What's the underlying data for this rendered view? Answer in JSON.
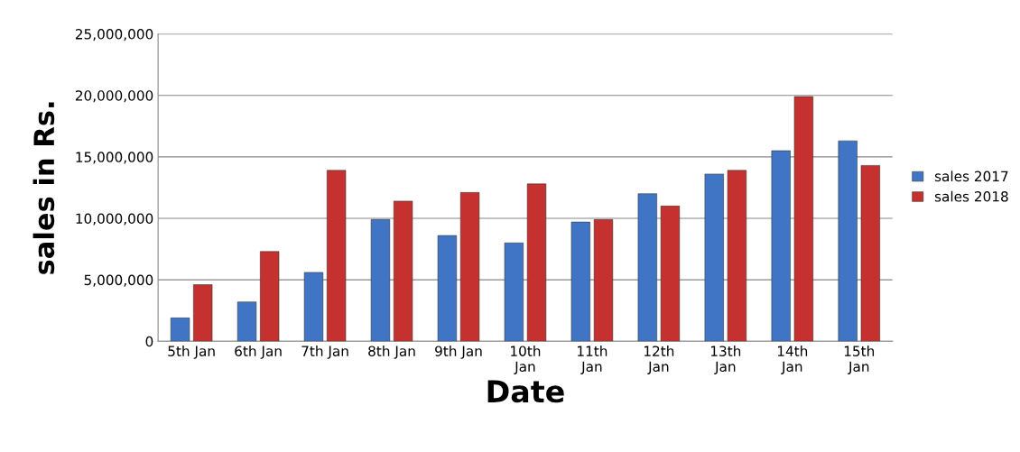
{
  "chart_data": {
    "type": "bar",
    "xlabel": "Date",
    "ylabel": "sales in Rs.",
    "categories": [
      "5th Jan",
      "6th Jan",
      "7th Jan",
      "8th Jan",
      "9th Jan",
      "10th\nJan",
      "11th\nJan",
      "12th\nJan",
      "13th\nJan",
      "14th\nJan",
      "15th\nJan"
    ],
    "series": [
      {
        "name": "sales 2017",
        "color": "#3f75c4",
        "values": [
          1900000,
          3200000,
          5600000,
          9900000,
          8600000,
          8000000,
          9700000,
          12000000,
          13600000,
          15500000,
          16300000
        ]
      },
      {
        "name": "sales 2018",
        "color": "#c4312e",
        "values": [
          4600000,
          7300000,
          13900000,
          11400000,
          12100000,
          12800000,
          9900000,
          11000000,
          13900000,
          19900000,
          14300000
        ]
      }
    ],
    "ylim": [
      0,
      25000000
    ],
    "yticks": [
      {
        "value": 0,
        "label": "0"
      },
      {
        "value": 5000000,
        "label": "5,000,000"
      },
      {
        "value": 10000000,
        "label": "10,000,000"
      },
      {
        "value": 15000000,
        "label": "15,000,000"
      },
      {
        "value": 20000000,
        "label": "20,000,000"
      },
      {
        "value": 25000000,
        "label": "25,000,000"
      }
    ],
    "grid": "y",
    "legend": "right"
  }
}
